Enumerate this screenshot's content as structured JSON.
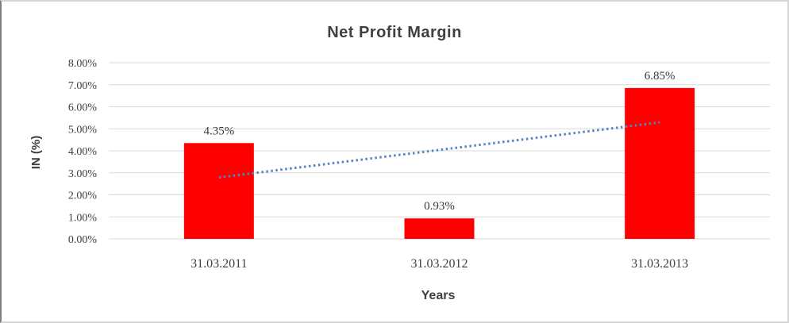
{
  "chart_data": {
    "type": "bar",
    "title": "Net Profit Margin",
    "xlabel": "Years",
    "ylabel": "IN (%)",
    "categories": [
      "31.03.2011",
      "31.03.2012",
      "31.03.2013"
    ],
    "values": [
      4.35,
      0.93,
      6.85
    ],
    "bar_labels": [
      "4.35%",
      "0.93%",
      "6.85%"
    ],
    "bar_color": "#FF0000",
    "ylim": [
      0,
      8
    ],
    "y_tick_labels": [
      "0.00%",
      "1.00%",
      "2.00%",
      "3.00%",
      "4.00%",
      "5.00%",
      "6.00%",
      "7.00%",
      "8.00%"
    ],
    "grid": true,
    "gridline_color": "#D9D9D9",
    "legend_position": "none",
    "trendline": {
      "kind": "linear",
      "style": "dotted",
      "color": "#4E86C8",
      "start_value_pct": 2.79,
      "end_value_pct": 5.29
    }
  }
}
